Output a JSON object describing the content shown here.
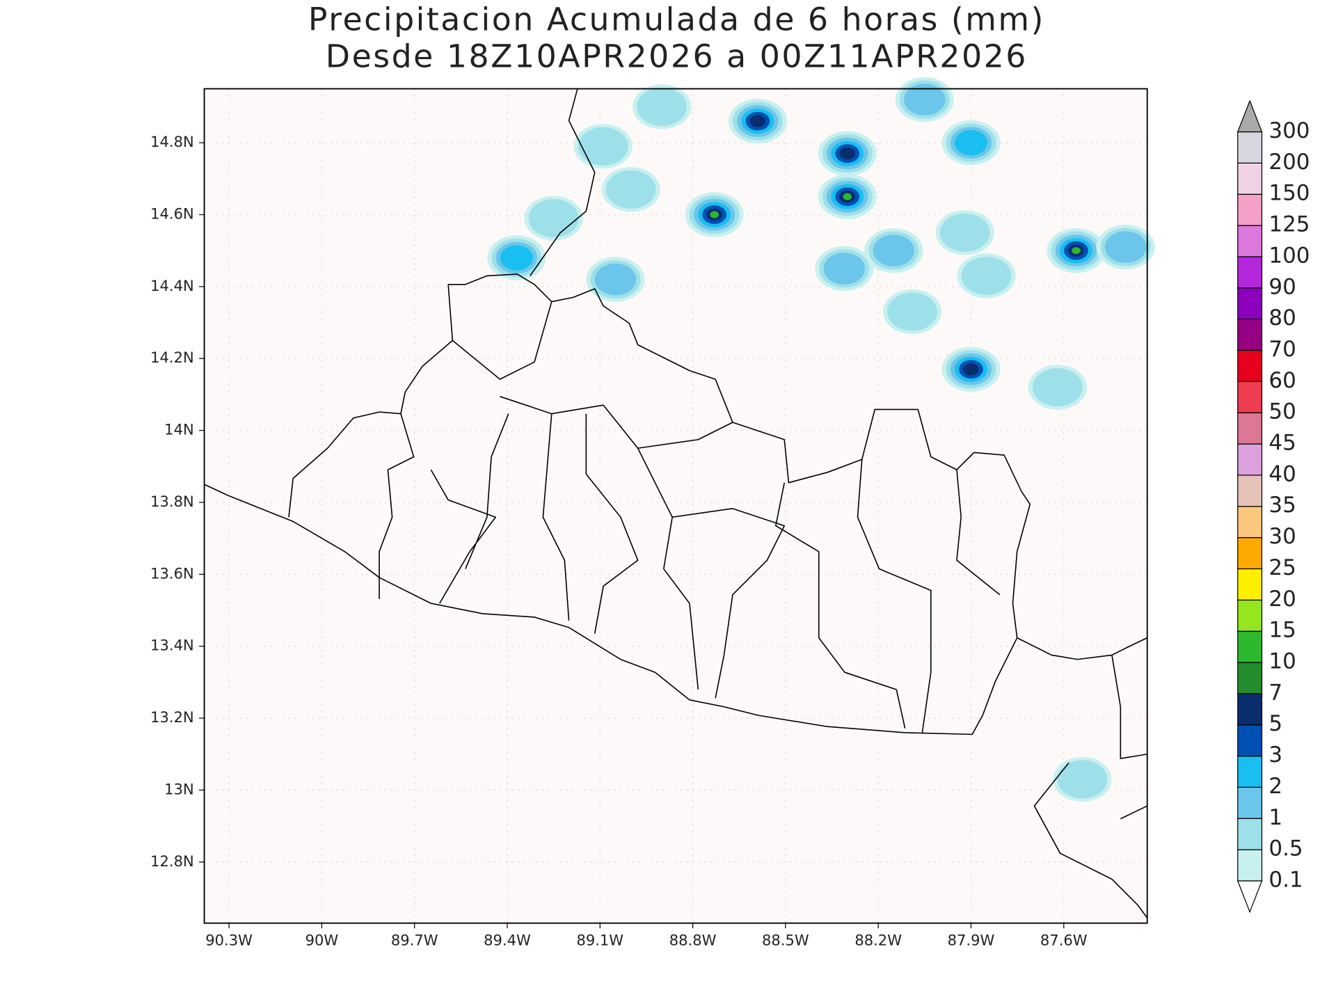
{
  "chart_data": {
    "type": "map",
    "title": "Precipitacion Acumulada de 6 horas (mm)",
    "subtitle": "Desde 18Z10APR2026 a 00Z11APR2026",
    "xlim": [
      -90.38,
      -87.33
    ],
    "ylim": [
      12.63,
      14.95
    ],
    "xticks": [
      {
        "value": -90.3,
        "label": "90.3W"
      },
      {
        "value": -90.0,
        "label": "90W"
      },
      {
        "value": -89.7,
        "label": "89.7W"
      },
      {
        "value": -89.4,
        "label": "89.4W"
      },
      {
        "value": -89.1,
        "label": "89.1W"
      },
      {
        "value": -88.8,
        "label": "88.8W"
      },
      {
        "value": -88.5,
        "label": "88.5W"
      },
      {
        "value": -88.2,
        "label": "88.2W"
      },
      {
        "value": -87.9,
        "label": "87.9W"
      },
      {
        "value": -87.6,
        "label": "87.6W"
      }
    ],
    "yticks": [
      {
        "value": 12.8,
        "label": "12.8N"
      },
      {
        "value": 13.0,
        "label": "13N"
      },
      {
        "value": 13.2,
        "label": "13.2N"
      },
      {
        "value": 13.4,
        "label": "13.4N"
      },
      {
        "value": 13.6,
        "label": "13.6N"
      },
      {
        "value": 13.8,
        "label": "13.8N"
      },
      {
        "value": 14.0,
        "label": "14N"
      },
      {
        "value": 14.2,
        "label": "14.2N"
      },
      {
        "value": 14.4,
        "label": "14.4N"
      },
      {
        "value": 14.6,
        "label": "14.6N"
      },
      {
        "value": 14.8,
        "label": "14.8N"
      }
    ],
    "grid": true,
    "background": "#fdf9f9",
    "levels": [
      0.1,
      0.5,
      1,
      2,
      3,
      5,
      7,
      10,
      15,
      20,
      25,
      30,
      35,
      40,
      45,
      50,
      60,
      70,
      80,
      90,
      100,
      125,
      150,
      200,
      300
    ],
    "colors": [
      "#c8f0ef",
      "#9ee0ea",
      "#6cc5ea",
      "#18bff0",
      "#0050b4",
      "#0a2d6e",
      "#238c2d",
      "#2db92d",
      "#96e61e",
      "#fff000",
      "#ffaa00",
      "#fac87d",
      "#e6c3b9",
      "#dca0dc",
      "#dc7896",
      "#f03c50",
      "#e6001e",
      "#960082",
      "#8c00be",
      "#b428dc",
      "#dc78dc",
      "#f5a0c8",
      "#f0d2e6",
      "#d7d7e1"
    ],
    "under_color": "#ffffff",
    "over_color": "#aaaaaa",
    "cells": [
      {
        "lon": -89.37,
        "lat": 14.48,
        "max": 2
      },
      {
        "lon": -89.05,
        "lat": 14.42,
        "max": 1
      },
      {
        "lon": -89.0,
        "lat": 14.67,
        "max": 0.5
      },
      {
        "lon": -89.25,
        "lat": 14.59,
        "max": 0.5
      },
      {
        "lon": -88.73,
        "lat": 14.6,
        "max": 10
      },
      {
        "lon": -88.59,
        "lat": 14.86,
        "max": 5
      },
      {
        "lon": -88.9,
        "lat": 14.9,
        "max": 0.5
      },
      {
        "lon": -89.09,
        "lat": 14.79,
        "max": 0.5
      },
      {
        "lon": -88.3,
        "lat": 14.77,
        "max": 5
      },
      {
        "lon": -88.3,
        "lat": 14.65,
        "max": 10
      },
      {
        "lon": -88.31,
        "lat": 14.45,
        "max": 1
      },
      {
        "lon": -88.15,
        "lat": 14.5,
        "max": 1
      },
      {
        "lon": -88.05,
        "lat": 14.92,
        "max": 1
      },
      {
        "lon": -87.9,
        "lat": 14.8,
        "max": 2
      },
      {
        "lon": -87.92,
        "lat": 14.55,
        "max": 0.5
      },
      {
        "lon": -87.9,
        "lat": 14.17,
        "max": 5
      },
      {
        "lon": -87.56,
        "lat": 14.5,
        "max": 10
      },
      {
        "lon": -87.4,
        "lat": 14.51,
        "max": 1
      },
      {
        "lon": -87.62,
        "lat": 14.12,
        "max": 0.5
      },
      {
        "lon": -87.54,
        "lat": 13.03,
        "max": 0.5
      },
      {
        "lon": -88.09,
        "lat": 14.33,
        "max": 0.5
      },
      {
        "lon": -87.85,
        "lat": 14.43,
        "max": 0.5
      }
    ]
  }
}
